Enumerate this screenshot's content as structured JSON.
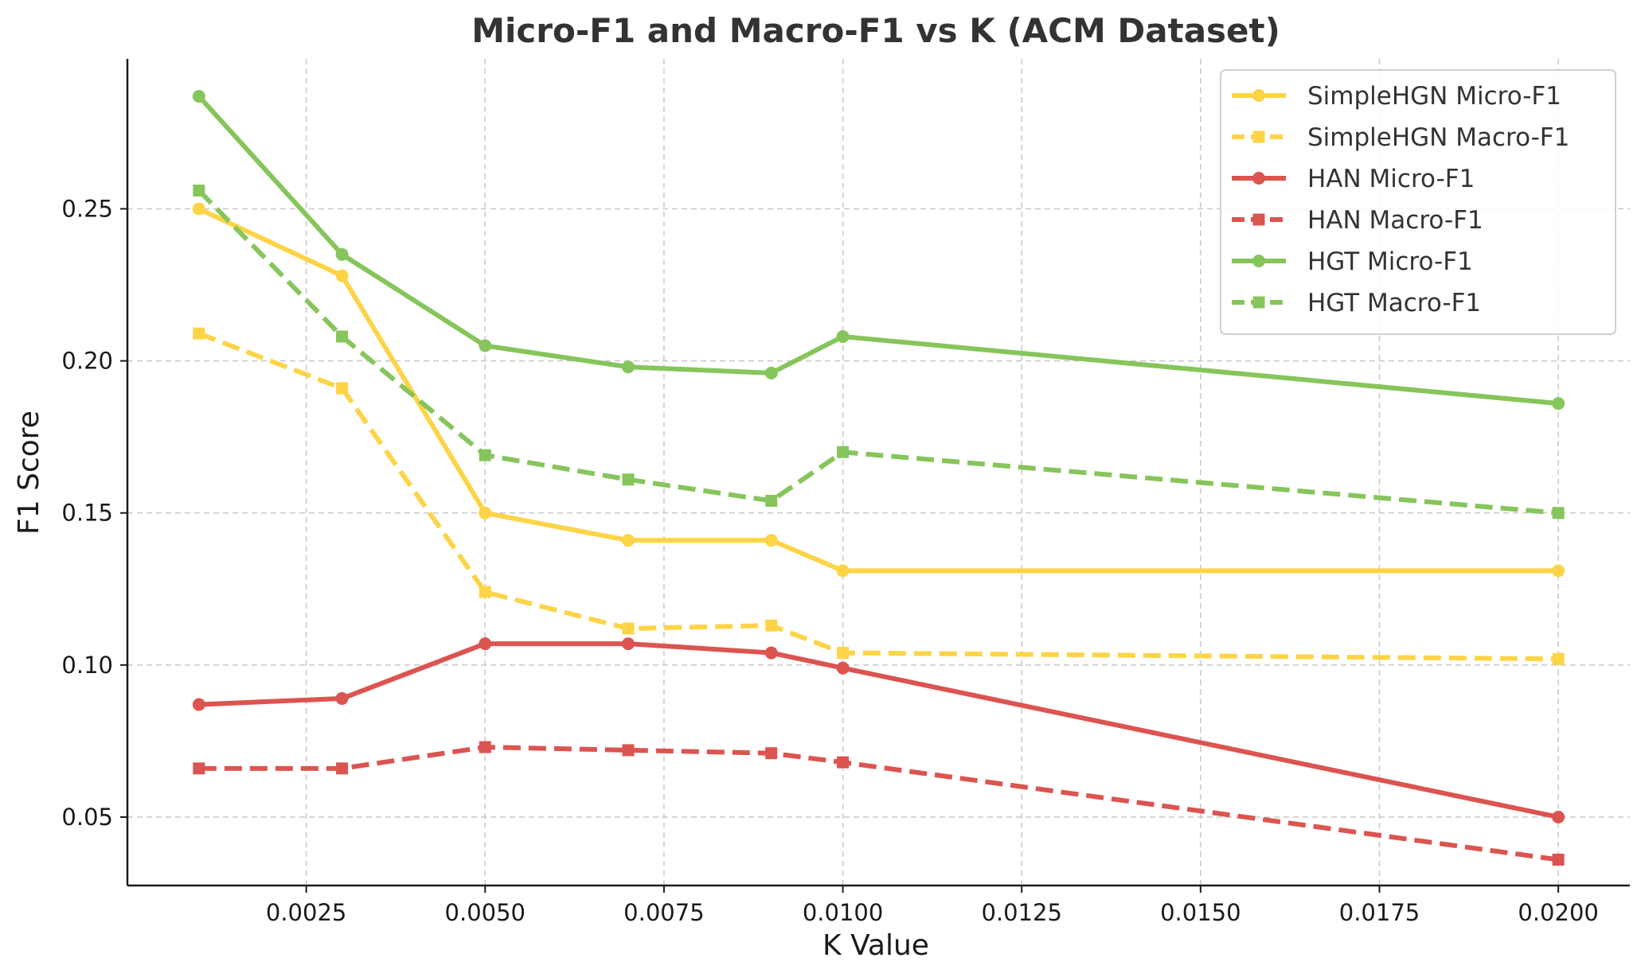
{
  "chart_data": {
    "type": "line",
    "title": "Micro-F1 and Macro-F1 vs K (ACM Dataset)",
    "xlabel": "K Value",
    "ylabel": "F1 Score",
    "x": [
      0.001,
      0.003,
      0.005,
      0.007,
      0.009,
      0.01,
      0.02
    ],
    "xlim": [
      0.0,
      0.021
    ],
    "ylim": [
      0.0275,
      0.2993
    ],
    "xticks": [
      0.0025,
      0.005,
      0.0075,
      0.01,
      0.0125,
      0.015,
      0.0175,
      0.02
    ],
    "xtick_labels": [
      "0.0025",
      "0.0050",
      "0.0075",
      "0.0100",
      "0.0125",
      "0.0150",
      "0.0175",
      "0.0200"
    ],
    "yticks": [
      0.05,
      0.1,
      0.15,
      0.2,
      0.25
    ],
    "ytick_labels": [
      "0.05",
      "0.10",
      "0.15",
      "0.20",
      "0.25"
    ],
    "grid": true,
    "legend_position": "top-right",
    "series": [
      {
        "name": "SimpleHGN Micro-F1",
        "color": "#FDD446",
        "dash": "solid",
        "marker": "circle",
        "values": [
          0.25,
          0.228,
          0.15,
          0.141,
          0.141,
          0.131,
          0.131
        ]
      },
      {
        "name": "SimpleHGN Macro-F1",
        "color": "#FDD446",
        "dash": "dashed",
        "marker": "square",
        "values": [
          0.209,
          0.191,
          0.124,
          0.112,
          0.113,
          0.104,
          0.102
        ]
      },
      {
        "name": "HAN Micro-F1",
        "color": "#DC5450",
        "dash": "solid",
        "marker": "circle",
        "values": [
          0.087,
          0.089,
          0.107,
          0.107,
          0.104,
          0.099,
          0.05
        ]
      },
      {
        "name": "HAN Macro-F1",
        "color": "#DC5450",
        "dash": "dashed",
        "marker": "square",
        "values": [
          0.066,
          0.066,
          0.073,
          0.072,
          0.071,
          0.068,
          0.036
        ]
      },
      {
        "name": "HGT Micro-F1",
        "color": "#86C55B",
        "dash": "solid",
        "marker": "circle",
        "values": [
          0.287,
          0.235,
          0.205,
          0.198,
          0.196,
          0.208,
          0.186
        ]
      },
      {
        "name": "HGT Macro-F1",
        "color": "#86C55B",
        "dash": "dashed",
        "marker": "square",
        "values": [
          0.256,
          0.208,
          0.169,
          0.161,
          0.154,
          0.17,
          0.15
        ]
      }
    ]
  }
}
